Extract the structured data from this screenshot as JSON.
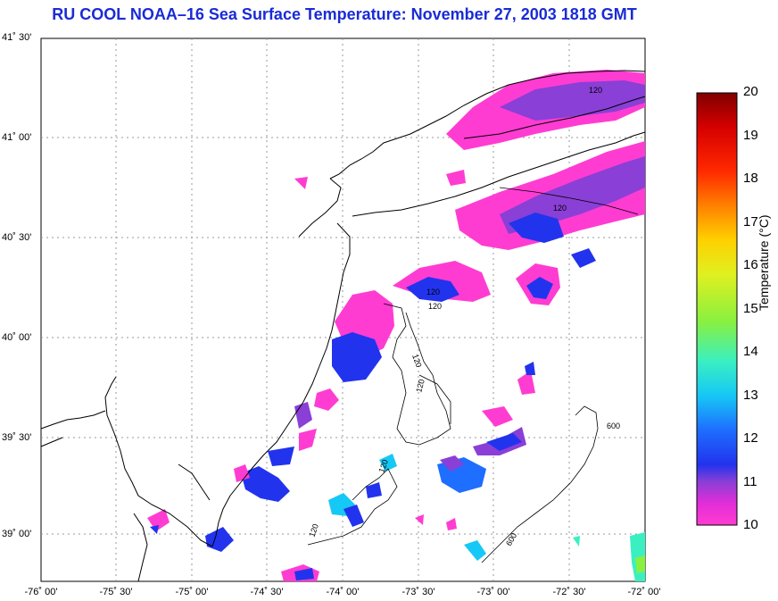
{
  "header": {
    "title": "RU COOL  NOAA–16  Sea Surface Temperature:  November 27, 2003 1818 GMT"
  },
  "map": {
    "lat_labels": [
      "41˚ 30'",
      "41˚ 00'",
      "40˚ 30'",
      "40˚ 00'",
      "39˚ 30'",
      "39˚ 00'"
    ],
    "lon_labels": [
      "-76˚ 00'",
      "-75˚ 30'",
      "-75˚ 00'",
      "-74˚ 30'",
      "-74˚ 00'",
      "-73˚ 30'",
      "-73˚ 00'",
      "-72˚ 30'",
      "-72˚ 00'"
    ],
    "contour_labels": [
      "120",
      "120",
      "120",
      "120",
      "120",
      "120",
      "120",
      "120",
      "600",
      "600"
    ]
  },
  "colorbar": {
    "title": "Temperature (°C)",
    "ticks": [
      "20",
      "19",
      "18",
      "17",
      "16",
      "15",
      "14",
      "13",
      "12",
      "11",
      "10"
    ],
    "colors": [
      "#ff3cd2",
      "#e22dd8",
      "#8a3fd6",
      "#2233ee",
      "#1e6eff",
      "#16c8f5",
      "#3af0c0",
      "#88f040",
      "#e0f020",
      "#ffd000",
      "#ff8a00",
      "#ff2800",
      "#d60000",
      "#800000"
    ]
  }
}
